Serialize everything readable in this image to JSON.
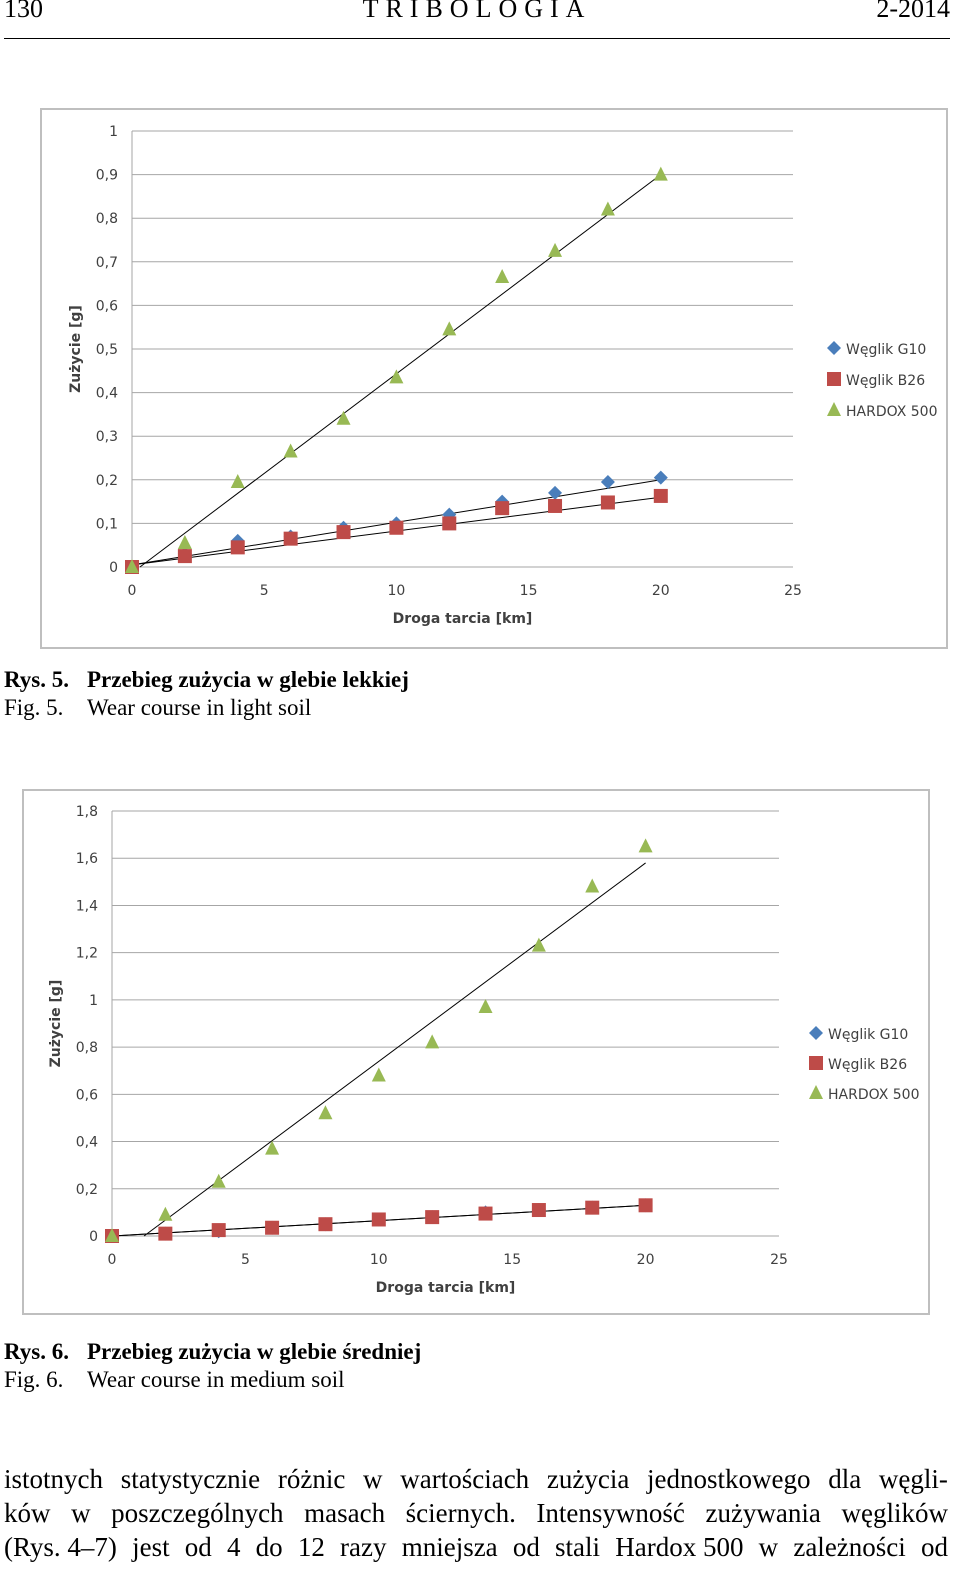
{
  "header": {
    "page_number": "130",
    "journal": "TRIBOLOGIA",
    "issue": "2-2014"
  },
  "figures": [
    {
      "caption_pl_label": "Rys. 5.",
      "caption_pl": "Przebieg zużycia w glebie lekkiej",
      "caption_en_label": "Fig. 5.",
      "caption_en": "Wear course in light soil"
    },
    {
      "caption_pl_label": "Rys. 6.",
      "caption_pl": "Przebieg zużycia w glebie średniej",
      "caption_en_label": "Fig. 6.",
      "caption_en": "Wear course in medium soil"
    }
  ],
  "chart_data": [
    {
      "type": "scatter",
      "xlabel": "Droga tarcia [km]",
      "ylabel": "Zużycie [g]",
      "xlim": [
        0,
        25
      ],
      "ylim": [
        0,
        1
      ],
      "x_ticks": [
        "0",
        "5",
        "10",
        "15",
        "20",
        "25"
      ],
      "y_ticks": [
        "0",
        "0,1",
        "0,2",
        "0,3",
        "0,4",
        "0,5",
        "0,6",
        "0,7",
        "0,8",
        "0,9",
        "1"
      ],
      "grid": "horizontal",
      "legend": "right",
      "series": [
        {
          "name": "Węglik G10",
          "color": "#4a7ebb",
          "marker": "diamond",
          "x": [
            0,
            2,
            4,
            6,
            8,
            10,
            12,
            14,
            16,
            18,
            20
          ],
          "y": [
            0.0,
            0.03,
            0.06,
            0.07,
            0.09,
            0.1,
            0.12,
            0.15,
            0.17,
            0.195,
            0.205
          ],
          "trend": [
            [
              0,
              0.005
            ],
            [
              20,
              0.2
            ]
          ]
        },
        {
          "name": "Węglik B26",
          "color": "#be4b48",
          "marker": "square",
          "x": [
            0,
            2,
            4,
            6,
            8,
            10,
            12,
            14,
            16,
            18,
            20
          ],
          "y": [
            0.0,
            0.025,
            0.045,
            0.065,
            0.08,
            0.09,
            0.1,
            0.135,
            0.14,
            0.148,
            0.163
          ],
          "trend": [
            [
              0,
              0.005
            ],
            [
              20,
              0.16
            ]
          ]
        },
        {
          "name": "HARDOX 500",
          "color": "#98b954",
          "marker": "triangle",
          "x": [
            0,
            2,
            4,
            6,
            8,
            10,
            12,
            14,
            16,
            18,
            20
          ],
          "y": [
            0.0,
            0.055,
            0.195,
            0.265,
            0.34,
            0.435,
            0.545,
            0.665,
            0.725,
            0.82,
            0.9
          ],
          "trend": [
            [
              0.3,
              0.0
            ],
            [
              20,
              0.9
            ]
          ]
        }
      ]
    },
    {
      "type": "scatter",
      "xlabel": "Droga tarcia [km]",
      "ylabel": "Zużycie [g]",
      "xlim": [
        0,
        25
      ],
      "ylim": [
        0,
        1.8
      ],
      "x_ticks": [
        "0",
        "5",
        "10",
        "15",
        "20",
        "25"
      ],
      "y_ticks": [
        "0",
        "0,2",
        "0,4",
        "0,6",
        "0,8",
        "1",
        "1,2",
        "1,4",
        "1,6",
        "1,8"
      ],
      "grid": "horizontal",
      "legend": "right",
      "series": [
        {
          "name": "Węglik G10",
          "color": "#4a7ebb",
          "marker": "diamond",
          "x": [
            0,
            2,
            4,
            6,
            8,
            10,
            12,
            14,
            16,
            18,
            20
          ],
          "y": [
            0.0,
            0.01,
            0.02,
            0.035,
            0.05,
            0.07,
            0.08,
            0.1,
            0.11,
            0.12,
            0.13
          ],
          "trend": [
            [
              0,
              0.0
            ],
            [
              20,
              0.13
            ]
          ]
        },
        {
          "name": "Węglik B26",
          "color": "#be4b48",
          "marker": "square",
          "x": [
            0,
            2,
            4,
            6,
            8,
            10,
            12,
            14,
            16,
            18,
            20
          ],
          "y": [
            0.0,
            0.01,
            0.025,
            0.035,
            0.05,
            0.07,
            0.08,
            0.095,
            0.11,
            0.12,
            0.13
          ],
          "trend": [
            [
              0,
              0.0
            ],
            [
              20,
              0.13
            ]
          ]
        },
        {
          "name": "HARDOX 500",
          "color": "#98b954",
          "marker": "triangle",
          "x": [
            0,
            2,
            4,
            6,
            8,
            10,
            12,
            14,
            16,
            18,
            20
          ],
          "y": [
            0.0,
            0.09,
            0.23,
            0.37,
            0.52,
            0.68,
            0.82,
            0.97,
            1.23,
            1.48,
            1.65
          ],
          "trend": [
            [
              1.2,
              0.0
            ],
            [
              20,
              1.58
            ]
          ]
        }
      ]
    }
  ],
  "body": {
    "lines": [
      [
        "istotnych",
        "statystycznie",
        "różnic",
        "w",
        "wartościach",
        "zużycia",
        "jednostkowego",
        "dla",
        "węgli-"
      ],
      [
        "ków",
        "w",
        "poszczególnych",
        "masach",
        "ściernych.",
        "Intensywność",
        "zużywania",
        "węglików"
      ],
      [
        "(Rys. 4–7)",
        "jest",
        "od",
        "4",
        "do",
        "12",
        "razy",
        "mniejsza",
        "od",
        "stali",
        "Hardox 500",
        "w",
        "zależności",
        "od"
      ]
    ]
  }
}
